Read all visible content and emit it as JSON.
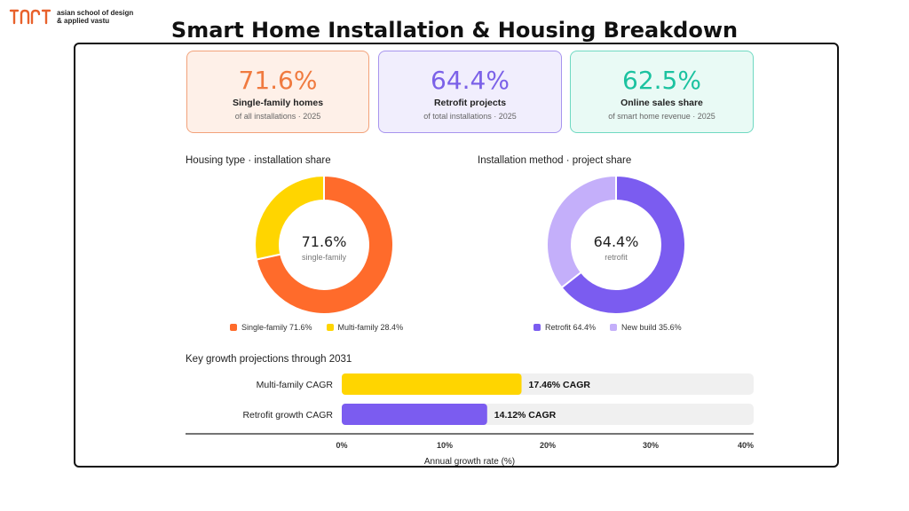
{
  "logo": {
    "line1": "asian school of design",
    "line2": "& applied vastu",
    "brand_color": "#E8612C"
  },
  "title": "Smart Home Installation & Housing Breakdown",
  "kpis": [
    {
      "value": "71.6%",
      "label": "Single-family homes",
      "sub": "of all installations · 2025",
      "color": "#F07A3F",
      "bg": "#FEF0E8",
      "border": "#F2A27A"
    },
    {
      "value": "64.4%",
      "label": "Retrofit projects",
      "sub": "of total installations · 2025",
      "color": "#7B61E8",
      "bg": "#F1EEFD",
      "border": "#A794EE"
    },
    {
      "value": "62.5%",
      "label": "Online sales share",
      "sub": "of smart home revenue · 2025",
      "color": "#1BC2A0",
      "bg": "#E9FAF5",
      "border": "#6FD9C2"
    }
  ],
  "chart_data": [
    {
      "type": "pie",
      "title": "Housing type · installation share",
      "center_value": "71.6%",
      "center_label": "single-family",
      "slices": [
        {
          "label": "Single-family 71.6%",
          "value": 71.6,
          "color": "#FF6B2B"
        },
        {
          "label": "Multi-family 28.4%",
          "value": 28.4,
          "color": "#FFD500"
        }
      ]
    },
    {
      "type": "pie",
      "title": "Installation method · project share",
      "center_value": "64.4%",
      "center_label": "retrofit",
      "slices": [
        {
          "label": "Retrofit 64.4%",
          "value": 64.4,
          "color": "#7B5CF0"
        },
        {
          "label": "New build 35.6%",
          "value": 35.6,
          "color": "#C4AFFA"
        }
      ]
    },
    {
      "type": "bar",
      "orientation": "horizontal",
      "title": "Key growth projections through 2031",
      "categories": [
        "Multi-family CAGR",
        "Retrofit growth CAGR"
      ],
      "values": [
        17.46,
        14.12
      ],
      "value_labels": [
        "17.46% CAGR",
        "14.12% CAGR"
      ],
      "colors": [
        "#FFD500",
        "#7B5CF0"
      ],
      "xlim": [
        0,
        40
      ],
      "ticks": [
        "0%",
        "10%",
        "20%",
        "30%",
        "40%"
      ],
      "xlabel": "Annual growth rate (%)"
    }
  ]
}
